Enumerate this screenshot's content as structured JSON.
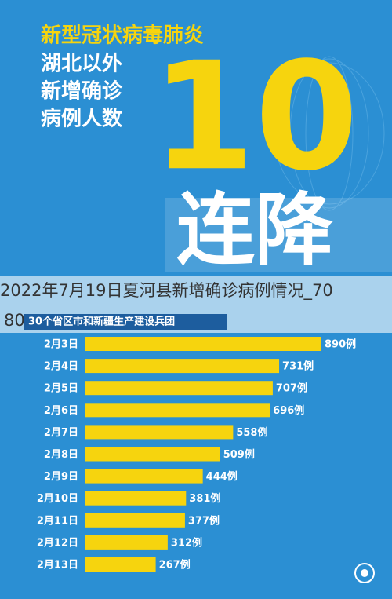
{
  "chart_data": {
    "type": "bar",
    "orientation": "horizontal",
    "title": [
      "新型冠状病毒肺炎",
      "湖北以外",
      "新增确诊",
      "病例人数"
    ],
    "headline_number": "10",
    "headline": "连降",
    "watermark": [
      "2022年7月19日夏河县新增确诊病例情况_70",
      "80"
    ],
    "subtitle": "30个省区市和新疆生产建设兵团",
    "categories": [
      "2月3日",
      "2月4日",
      "2月5日",
      "2月6日",
      "2月7日",
      "2月8日",
      "2月9日",
      "2月10日",
      "2月11日",
      "2月12日",
      "2月13日"
    ],
    "values": [
      890,
      731,
      707,
      696,
      558,
      509,
      444,
      381,
      377,
      312,
      267
    ],
    "value_labels": [
      "890例",
      "731例",
      "707例",
      "696例",
      "558例",
      "509例",
      "444例",
      "381例",
      "377例",
      "312例",
      "267例"
    ],
    "color": "#f6d40e"
  }
}
